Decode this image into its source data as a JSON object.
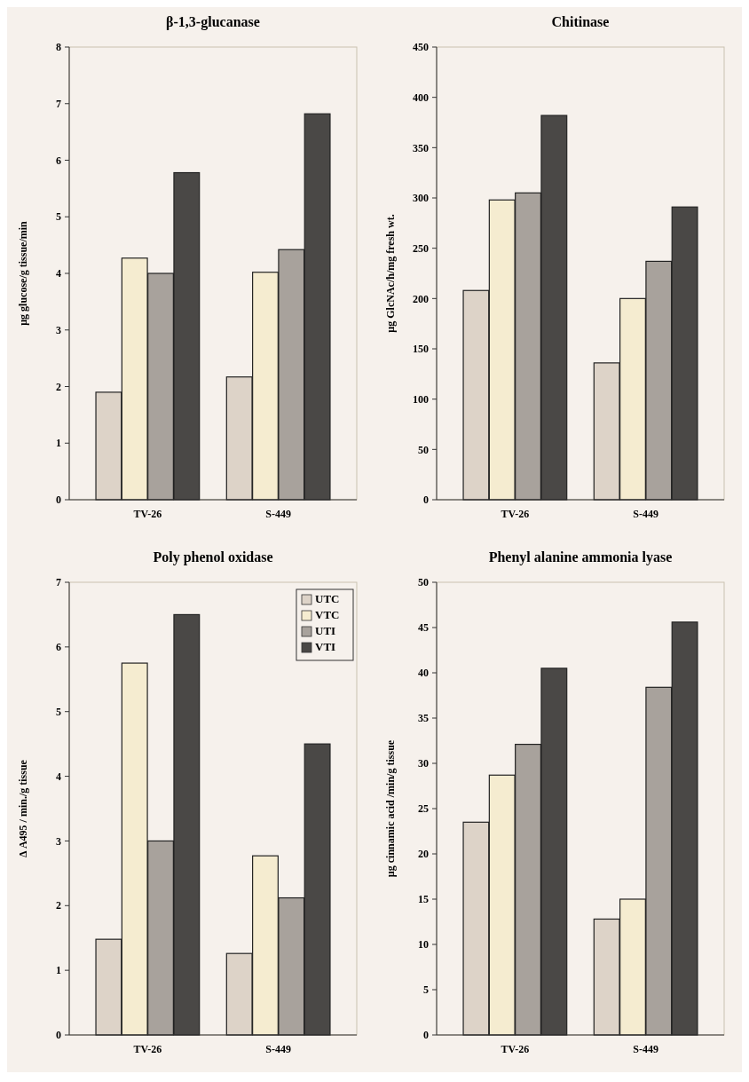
{
  "chart_data": [
    {
      "type": "bar",
      "title": "β-1,3-glucanase",
      "ylabel": "µg glucose/g tissue/min",
      "categories": [
        "TV-26",
        "S-449"
      ],
      "ylim": [
        0,
        8
      ],
      "yticks": [
        0,
        1,
        2,
        3,
        4,
        5,
        6,
        7,
        8
      ],
      "series": [
        {
          "color": "#ddd3c8",
          "values": [
            1.9,
            2.17
          ]
        },
        {
          "color": "#f5ecd0",
          "values": [
            4.27,
            4.02
          ]
        },
        {
          "color": "#a8a29c",
          "values": [
            4.0,
            4.42
          ]
        },
        {
          "color": "#4a4846",
          "values": [
            5.78,
            6.82
          ]
        }
      ]
    },
    {
      "type": "bar",
      "title": "Chitinase",
      "ylabel": "µg GlcNAc/h/mg fresh wt.",
      "categories": [
        "TV-26",
        "S-449"
      ],
      "ylim": [
        0,
        450
      ],
      "yticks": [
        0,
        50,
        100,
        150,
        200,
        250,
        300,
        350,
        400,
        450
      ],
      "series": [
        {
          "color": "#ddd3c8",
          "values": [
            208,
            136
          ]
        },
        {
          "color": "#f5ecd0",
          "values": [
            298,
            200
          ]
        },
        {
          "color": "#a8a29c",
          "values": [
            305,
            237
          ]
        },
        {
          "color": "#4a4846",
          "values": [
            382,
            291
          ]
        }
      ]
    },
    {
      "type": "bar",
      "title": "Poly phenol oxidase",
      "ylabel": "Δ A495 / min./g tissue",
      "categories": [
        "TV-26",
        "S-449"
      ],
      "ylim": [
        0,
        7
      ],
      "yticks": [
        0,
        1,
        2,
        3,
        4,
        5,
        6,
        7
      ],
      "legend": "top right",
      "series": [
        {
          "name": "UTC",
          "color": "#ddd3c8",
          "values": [
            1.48,
            1.26
          ]
        },
        {
          "name": "VTC",
          "color": "#f5ecd0",
          "values": [
            5.75,
            2.77
          ]
        },
        {
          "name": "UTI",
          "color": "#a8a29c",
          "values": [
            3.0,
            2.12
          ]
        },
        {
          "name": "VTI",
          "color": "#4a4846",
          "values": [
            6.5,
            4.5
          ]
        }
      ]
    },
    {
      "type": "bar",
      "title": "Phenyl alanine ammonia lyase",
      "ylabel": "µg cinnamic acid /min/g tissue",
      "categories": [
        "TV-26",
        "S-449"
      ],
      "ylim": [
        0,
        50
      ],
      "yticks": [
        0,
        5,
        10,
        15,
        20,
        25,
        30,
        35,
        40,
        45,
        50
      ],
      "series": [
        {
          "color": "#ddd3c8",
          "values": [
            23.5,
            12.8
          ]
        },
        {
          "color": "#f5ecd0",
          "values": [
            28.7,
            15.0
          ]
        },
        {
          "color": "#a8a29c",
          "values": [
            32.1,
            38.4
          ]
        },
        {
          "color": "#4a4846",
          "values": [
            40.5,
            45.6
          ]
        }
      ]
    }
  ]
}
